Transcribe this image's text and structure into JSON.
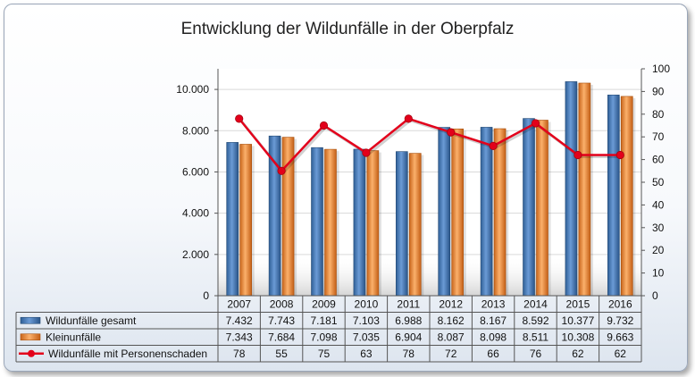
{
  "chart_data": {
    "type": "bar",
    "title": "Entwicklung der Wildunfälle in der Oberpfalz",
    "categories": [
      "2007",
      "2008",
      "2009",
      "2010",
      "2011",
      "2012",
      "2013",
      "2014",
      "2015",
      "2016"
    ],
    "series": [
      {
        "name": "Wildunfälle gesamt",
        "type": "bar",
        "axis": "left",
        "color": "#4f81bd",
        "values": [
          7432,
          7743,
          7181,
          7103,
          6988,
          8162,
          8167,
          8592,
          10377,
          9732
        ],
        "labels": [
          "7.432",
          "7.743",
          "7.181",
          "7.103",
          "6.988",
          "8.162",
          "8.167",
          "8.592",
          "10.377",
          "9.732"
        ]
      },
      {
        "name": "Kleinunfälle",
        "type": "bar",
        "axis": "left",
        "color": "#f79646",
        "values": [
          7343,
          7684,
          7098,
          7035,
          6904,
          8087,
          8098,
          8511,
          10308,
          9663
        ],
        "labels": [
          "7.343",
          "7.684",
          "7.098",
          "7.035",
          "6.904",
          "8.087",
          "8.098",
          "8.511",
          "10.308",
          "9.663"
        ]
      },
      {
        "name": "Wildunfälle mit Personenschaden",
        "type": "line",
        "axis": "right",
        "color": "#e3001b",
        "values": [
          78,
          55,
          75,
          63,
          78,
          72,
          66,
          76,
          62,
          62
        ],
        "labels": [
          "78",
          "55",
          "75",
          "63",
          "78",
          "72",
          "66",
          "76",
          "62",
          "62"
        ]
      }
    ],
    "y_left": {
      "range": [
        0,
        11000
      ],
      "ticks": [
        0,
        2000,
        4000,
        6000,
        8000,
        10000
      ],
      "tick_labels": [
        "0",
        "2.000",
        "4.000",
        "6.000",
        "8.000",
        "10.000"
      ]
    },
    "y_right": {
      "range": [
        0,
        100
      ],
      "ticks": [
        0,
        10,
        20,
        30,
        40,
        50,
        60,
        70,
        80,
        90,
        100
      ],
      "tick_labels": [
        "0",
        "10",
        "20",
        "30",
        "40",
        "50",
        "60",
        "70",
        "80",
        "90",
        "100"
      ]
    },
    "gridlines": true,
    "legend": "data-table-bottom"
  }
}
